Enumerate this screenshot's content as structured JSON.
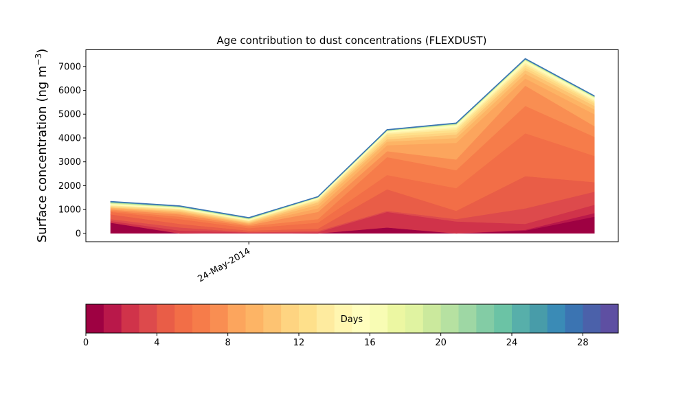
{
  "chart_data": {
    "type": "area",
    "title": "Age contribution to dust concentrations (FLEXDUST)",
    "ylabel": "Surface concentration (ng m",
    "ylabel_exponent": "−3",
    "ylabel_suffix": ")",
    "xlabel": "",
    "x_tick_labels": [
      "24-May-2014"
    ],
    "ylim": [
      -350,
      7700
    ],
    "y_ticks": [
      0,
      1000,
      2000,
      3000,
      4000,
      5000,
      6000,
      7000
    ],
    "x_points": 8,
    "x_tick_index": 2,
    "grid": false,
    "legend": "none",
    "cumulative_boundaries": [
      {
        "age_days": 1,
        "values": [
          450,
          0,
          10,
          0,
          250,
          0,
          120,
          700
        ]
      },
      {
        "age_days": 2,
        "values": [
          450,
          0,
          10,
          0,
          250,
          0,
          150,
          850
        ]
      },
      {
        "age_days": 3,
        "values": [
          520,
          120,
          40,
          50,
          900,
          500,
          400,
          1200
        ]
      },
      {
        "age_days": 4,
        "values": [
          600,
          250,
          50,
          100,
          950,
          600,
          1050,
          1750
        ]
      },
      {
        "age_days": 5,
        "values": [
          800,
          400,
          120,
          200,
          1850,
          950,
          2400,
          2150
        ]
      },
      {
        "age_days": 6,
        "values": [
          900,
          600,
          220,
          450,
          2450,
          1900,
          4200,
          3250
        ]
      },
      {
        "age_days": 7,
        "values": [
          950,
          700,
          300,
          600,
          3200,
          2650,
          5350,
          4050
        ]
      },
      {
        "age_days": 8,
        "values": [
          1000,
          800,
          350,
          900,
          3450,
          3100,
          6200,
          4500
        ]
      },
      {
        "age_days": 9,
        "values": [
          1050,
          850,
          400,
          1050,
          3700,
          3800,
          6500,
          5000
        ]
      },
      {
        "age_days": 10,
        "values": [
          1080,
          900,
          430,
          1200,
          3850,
          4000,
          6700,
          5200
        ]
      },
      {
        "age_days": 11,
        "values": [
          1100,
          940,
          460,
          1300,
          3950,
          4150,
          6850,
          5350
        ]
      },
      {
        "age_days": 12,
        "values": [
          1130,
          980,
          490,
          1350,
          4050,
          4250,
          6950,
          5450
        ]
      },
      {
        "age_days": 13,
        "values": [
          1160,
          1010,
          520,
          1400,
          4150,
          4350,
          7050,
          5520
        ]
      },
      {
        "age_days": 14,
        "values": [
          1180,
          1030,
          540,
          1430,
          4200,
          4420,
          7120,
          5570
        ]
      },
      {
        "age_days": 15,
        "values": [
          1200,
          1050,
          560,
          1460,
          4240,
          4480,
          7180,
          5620
        ]
      },
      {
        "age_days": 16,
        "values": [
          1220,
          1065,
          575,
          1480,
          4270,
          4520,
          7220,
          5660
        ]
      },
      {
        "age_days": 17,
        "values": [
          1240,
          1080,
          590,
          1495,
          4290,
          4550,
          7250,
          5690
        ]
      },
      {
        "age_days": 18,
        "values": [
          1255,
          1090,
          600,
          1505,
          4300,
          4565,
          7265,
          5705
        ]
      },
      {
        "age_days": 19,
        "values": [
          1270,
          1100,
          610,
          1512,
          4310,
          4578,
          7278,
          5718
        ]
      },
      {
        "age_days": 20,
        "values": [
          1285,
          1110,
          620,
          1518,
          4318,
          4588,
          7288,
          5728
        ]
      },
      {
        "age_days": 21,
        "values": [
          1295,
          1118,
          628,
          1522,
          4324,
          4596,
          7296,
          5736
        ]
      },
      {
        "age_days": 22,
        "values": [
          1303,
          1124,
          634,
          1525,
          4329,
          4602,
          7302,
          5742
        ]
      },
      {
        "age_days": 23,
        "values": [
          1310,
          1129,
          639,
          1528,
          4333,
          4607,
          7307,
          5747
        ]
      },
      {
        "age_days": 24,
        "values": [
          1315,
          1133,
          643,
          1530,
          4336,
          4611,
          7311,
          5751
        ]
      },
      {
        "age_days": 25,
        "values": [
          1320,
          1137,
          646,
          1532,
          4339,
          4614,
          7314,
          5754
        ]
      },
      {
        "age_days": 26,
        "values": [
          1324,
          1140,
          649,
          1534,
          4341,
          4617,
          7317,
          5757
        ]
      },
      {
        "age_days": 27,
        "values": [
          1327,
          1143,
          651,
          1535,
          4343,
          4619,
          7319,
          5759
        ]
      },
      {
        "age_days": 28,
        "values": [
          1330,
          1145,
          653,
          1536,
          4345,
          4621,
          7321,
          5761
        ]
      },
      {
        "age_days": 29,
        "values": [
          1333,
          1147,
          655,
          1537,
          4347,
          4623,
          7323,
          5763
        ]
      },
      {
        "age_days": 30,
        "values": [
          1335,
          1150,
          657,
          1538,
          4348,
          4625,
          7325,
          5765
        ]
      }
    ],
    "colorbar": {
      "label": "Days",
      "min": 0,
      "max": 30,
      "ticks": [
        0,
        4,
        8,
        12,
        16,
        20,
        24,
        28
      ],
      "colors": [
        "#9e0142",
        "#b9184a",
        "#d0334a",
        "#dd4a4c",
        "#e95d47",
        "#f26e47",
        "#f67c4a",
        "#f98e52",
        "#fca55d",
        "#fdb465",
        "#fdc372",
        "#fed481",
        "#fee08b",
        "#feeb9f",
        "#fff6b0",
        "#fffebe",
        "#f8fcb4",
        "#ecf7a2",
        "#e0f3a1",
        "#cbe99d",
        "#b6e1a1",
        "#9ed7a4",
        "#83cca5",
        "#6bc3a5",
        "#57afaa",
        "#489ca9",
        "#3a8bb6",
        "#3b74b2",
        "#4b61aa",
        "#5e4fa2"
      ]
    }
  }
}
